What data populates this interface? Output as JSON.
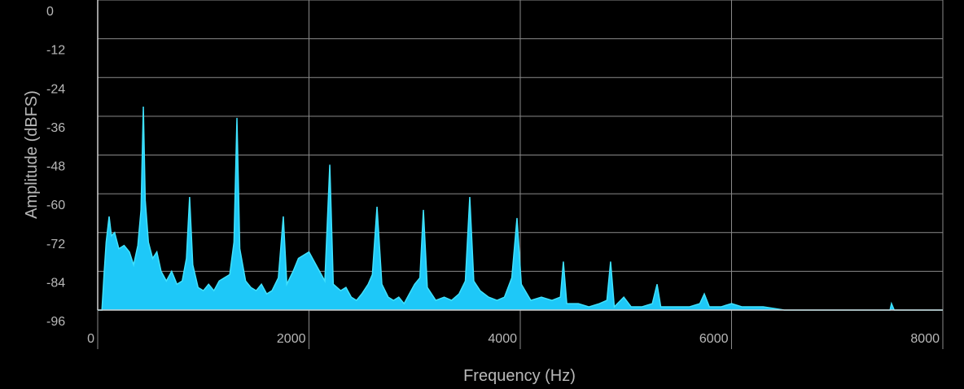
{
  "chart_data": {
    "type": "area",
    "x_label": "Frequency (Hz)",
    "y_label": "Amplitude (dBFS)",
    "xlim": [
      0,
      8000
    ],
    "ylim": [
      -96,
      0
    ],
    "xticks": [
      0,
      2000,
      4000,
      6000,
      8000
    ],
    "yticks": [
      0,
      -12,
      -24,
      -36,
      -48,
      -60,
      -72,
      -84,
      -96
    ],
    "grid": true,
    "color": "#1ec8f8",
    "line_color": "#3fe2ff",
    "x": [
      0,
      40,
      60,
      80,
      108,
      130,
      160,
      200,
      250,
      300,
      340,
      380,
      410,
      432,
      450,
      480,
      520,
      560,
      600,
      650,
      700,
      750,
      800,
      840,
      870,
      900,
      950,
      1000,
      1050,
      1100,
      1150,
      1200,
      1250,
      1290,
      1318,
      1345,
      1400,
      1450,
      1500,
      1550,
      1600,
      1650,
      1710,
      1757,
      1790,
      1850,
      1900,
      1950,
      2000,
      2050,
      2100,
      2150,
      2197,
      2230,
      2300,
      2350,
      2400,
      2450,
      2500,
      2560,
      2600,
      2644,
      2690,
      2750,
      2800,
      2850,
      2900,
      2950,
      3000,
      3050,
      3083,
      3120,
      3200,
      3280,
      3350,
      3420,
      3480,
      3522,
      3560,
      3620,
      3700,
      3780,
      3850,
      3920,
      3969,
      4010,
      4100,
      4200,
      4300,
      4380,
      4408,
      4440,
      4550,
      4650,
      4750,
      4820,
      4855,
      4890,
      4980,
      5050,
      5150,
      5250,
      5295,
      5330,
      5450,
      5600,
      5700,
      5742,
      5790,
      5900,
      6000,
      6100,
      6300,
      6500,
      7000,
      7500,
      7514,
      7540,
      8000
    ],
    "values": [
      -96,
      -96,
      -85,
      -75,
      -67,
      -73,
      -72,
      -77,
      -76,
      -78,
      -82,
      -76,
      -65,
      -33,
      -62,
      -75,
      -80,
      -78,
      -84,
      -87,
      -84,
      -88,
      -87,
      -80,
      -61,
      -82,
      -89,
      -90,
      -88,
      -90,
      -87,
      -86,
      -85,
      -75,
      -36.5,
      -77,
      -87,
      -89,
      -90,
      -88,
      -91,
      -90,
      -86,
      -67,
      -88,
      -84,
      -80,
      -79,
      -78,
      -81,
      -84,
      -87,
      -51,
      -88,
      -90,
      -89,
      -92,
      -93,
      -91,
      -88,
      -85,
      -64,
      -88,
      -92,
      -93,
      -92,
      -94,
      -91,
      -88,
      -86,
      -65,
      -89,
      -93,
      -92,
      -93,
      -91,
      -87,
      -61,
      -87,
      -90,
      -92,
      -93,
      -92,
      -86,
      -67.5,
      -88,
      -93,
      -92,
      -93,
      -92,
      -81,
      -94,
      -94,
      -95,
      -94,
      -93,
      -81,
      -95,
      -92,
      -95,
      -95,
      -94,
      -88,
      -95,
      -95,
      -95,
      -94,
      -91,
      -95,
      -95,
      -94,
      -95,
      -95,
      -96,
      -96,
      -96,
      -94,
      -96,
      -96
    ]
  }
}
